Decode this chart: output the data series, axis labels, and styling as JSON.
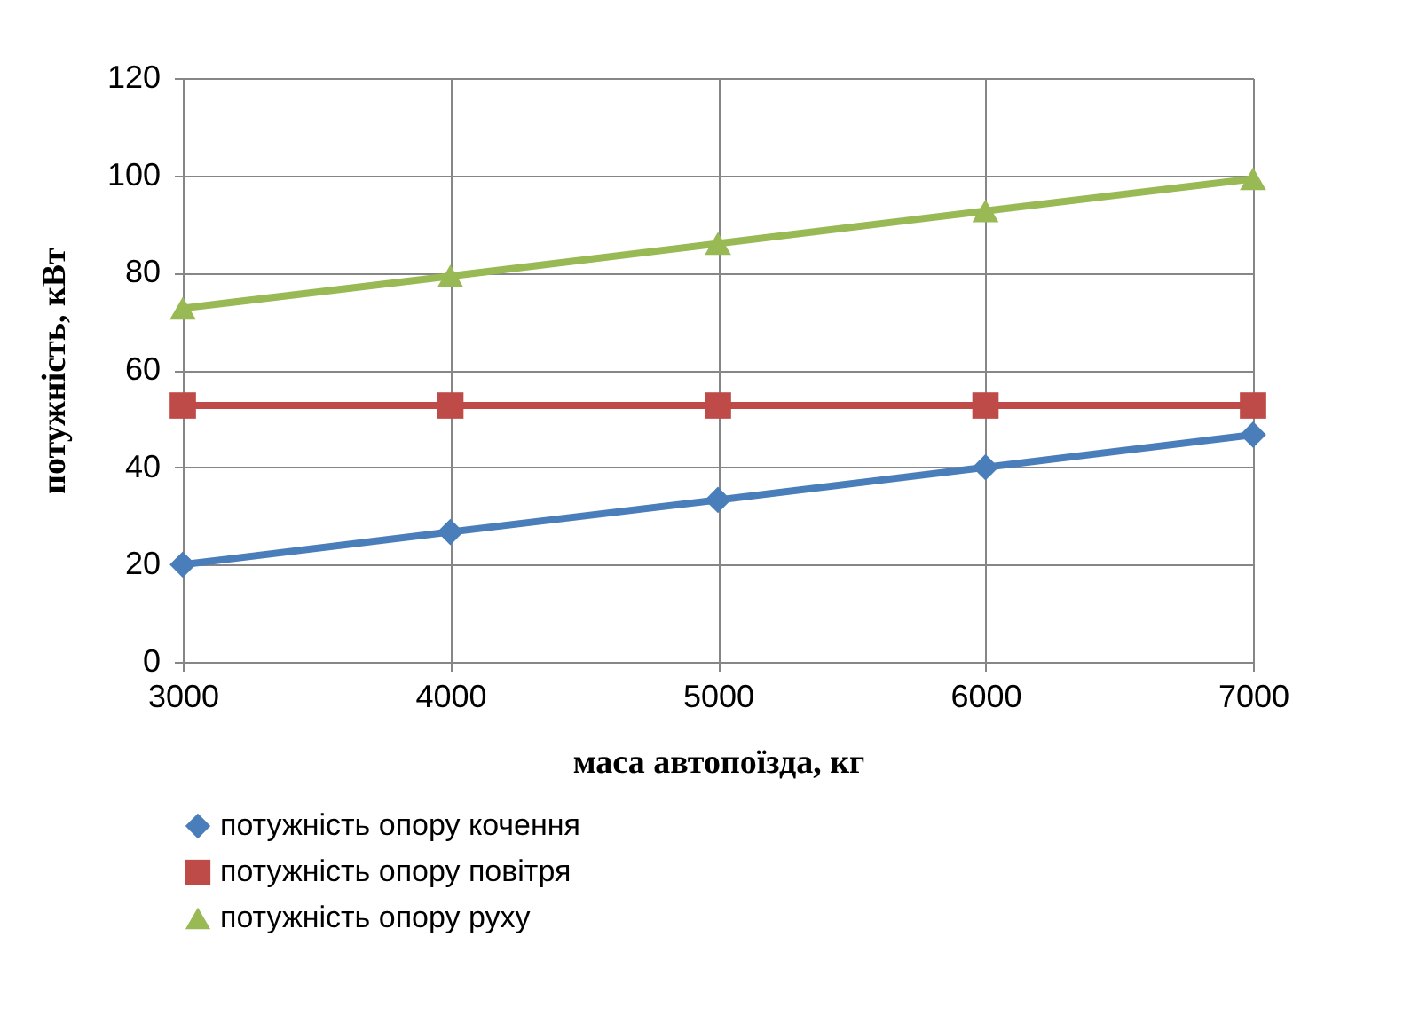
{
  "chart_data": {
    "type": "line",
    "xlabel": "маса автопоїзда, кг",
    "ylabel": "потужність, кВт",
    "x": [
      3000,
      4000,
      5000,
      6000,
      7000
    ],
    "xlim": [
      3000,
      7000
    ],
    "xticks": [
      3000,
      4000,
      5000,
      6000,
      7000
    ],
    "ylim": [
      0,
      120
    ],
    "yticks": [
      0,
      20,
      40,
      60,
      80,
      100,
      120
    ],
    "grid": true,
    "legend": "bottom",
    "line_style": "solid",
    "series": [
      {
        "name": "потужність опору кочення",
        "color": "#4a7ebb",
        "marker": "diamond",
        "values": [
          20,
          26.7,
          33.3,
          40,
          46.7
        ]
      },
      {
        "name": "потужність опору повітря",
        "color": "#be4b48",
        "marker": "square",
        "values": [
          52.7,
          52.7,
          52.7,
          52.7,
          52.7
        ]
      },
      {
        "name": "потужність опору руху",
        "color": "#98b954",
        "marker": "triangle",
        "values": [
          72.7,
          79.3,
          86,
          92.7,
          99.3
        ]
      }
    ]
  }
}
